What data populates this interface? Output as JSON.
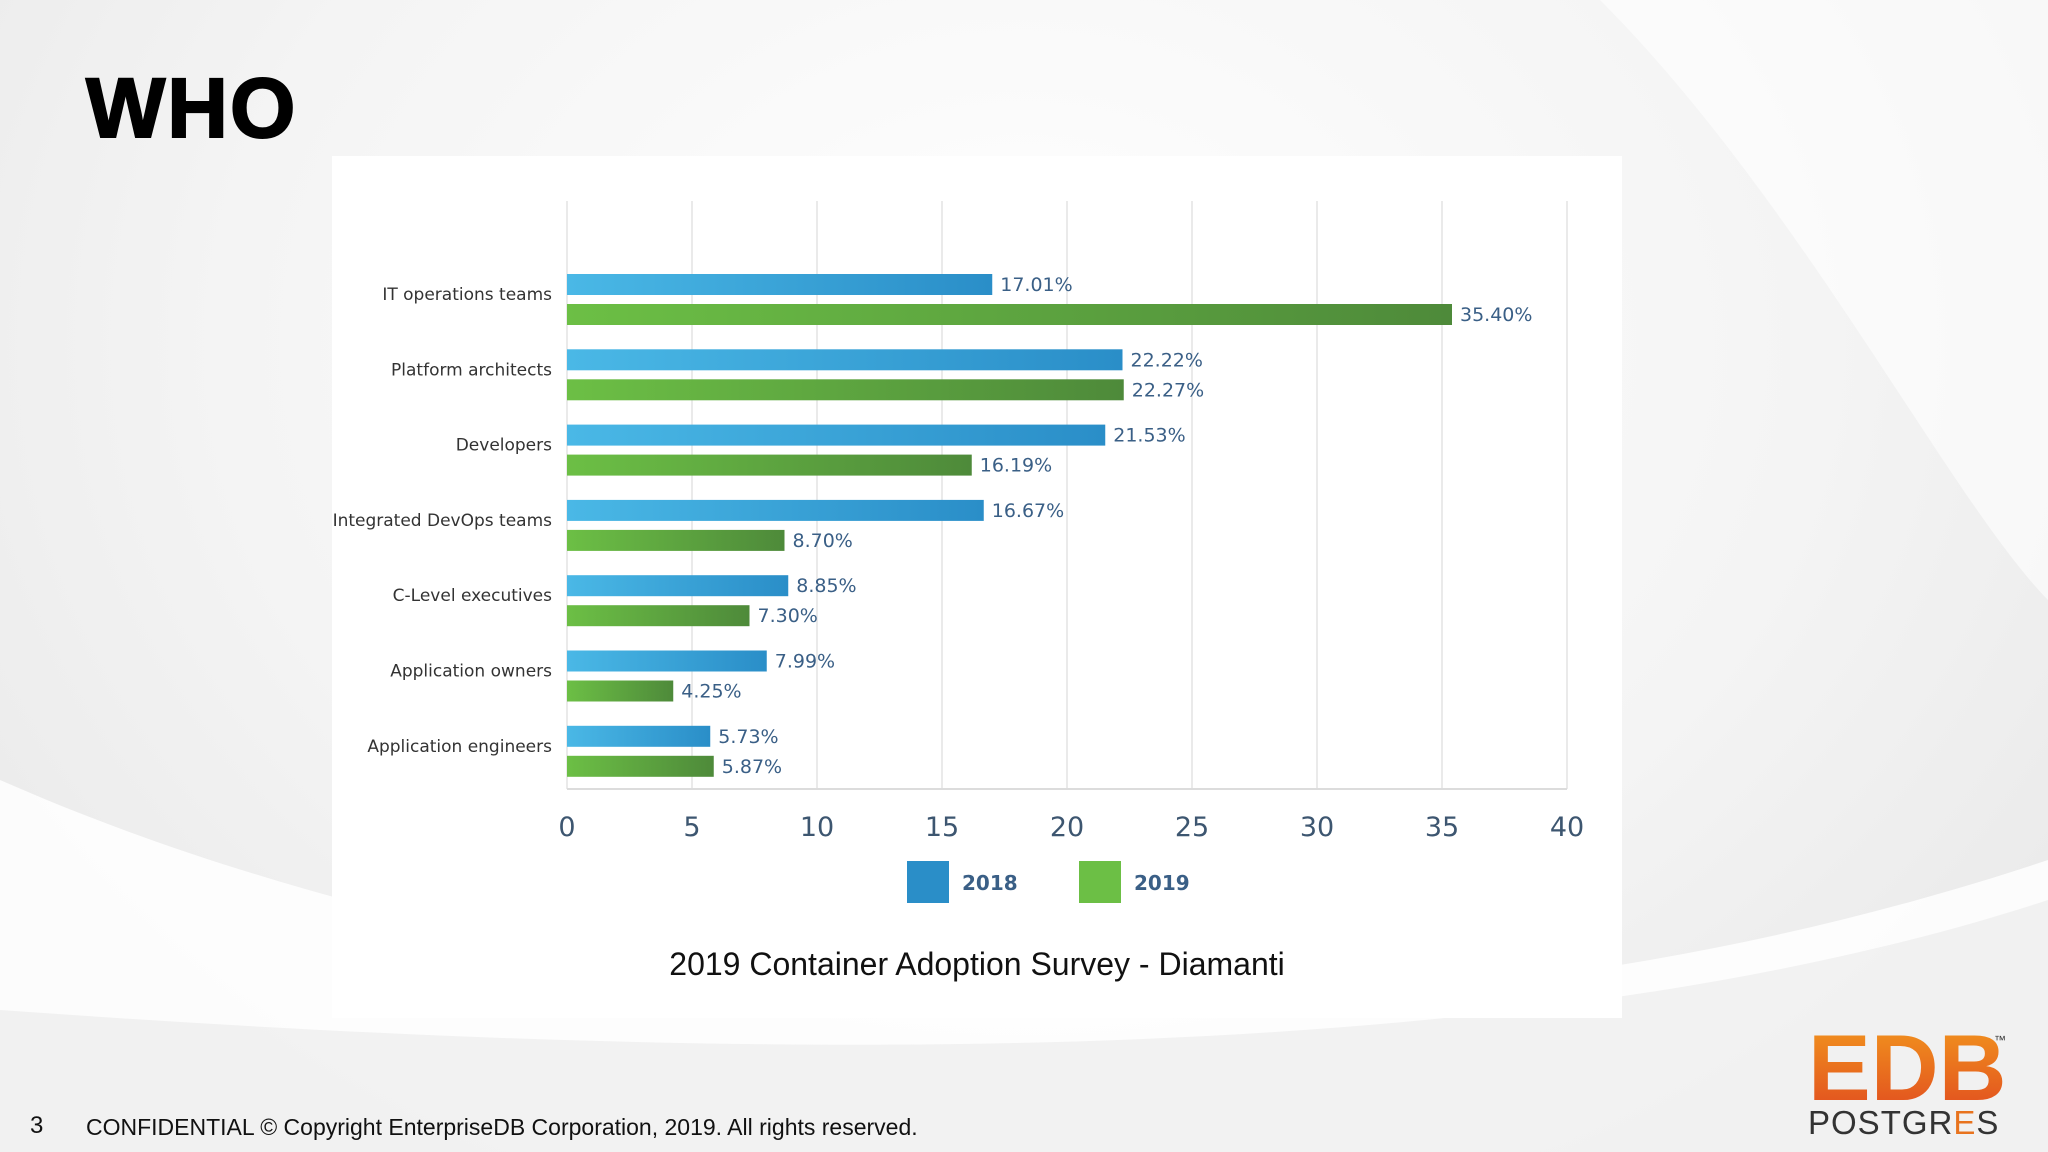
{
  "slide": {
    "title": "WHO",
    "page_number": "3",
    "footer": "CONFIDENTIAL © Copyright EnterpriseDB Corporation, 2019. All rights reserved.",
    "caption": "2019 Container Adoption Survey - Diamanti"
  },
  "logo": {
    "mark": "EDB",
    "trademark": "™",
    "word_prefix": "POSTGR",
    "word_accent": "E",
    "word_suffix": "S"
  },
  "colors": {
    "series_2018": "#2a8ec8",
    "series_2019": "#6cbf45",
    "logo_orange": "#e8731e",
    "logo_dark": "#3a3a3a"
  },
  "chart_data": {
    "type": "bar",
    "orientation": "horizontal",
    "categories": [
      "IT operations teams",
      "Platform architects",
      "Developers",
      "Integrated DevOps teams",
      "C-Level executives",
      "Application owners",
      "Application engineers"
    ],
    "series": [
      {
        "name": "2018",
        "values": [
          17.01,
          22.22,
          21.53,
          16.67,
          8.85,
          7.99,
          5.73
        ],
        "labels": [
          "17.01%",
          "22.22%",
          "21.53%",
          "16.67%",
          "8.85%",
          "7.99%",
          "5.73%"
        ]
      },
      {
        "name": "2019",
        "values": [
          35.4,
          22.27,
          16.19,
          8.7,
          7.3,
          4.25,
          5.87
        ],
        "labels": [
          "35.40%",
          "22.27%",
          "16.19%",
          "8.70%",
          "7.30%",
          "4.25%",
          "5.87%"
        ]
      }
    ],
    "xlim": [
      0,
      40
    ],
    "xticks": [
      "0",
      "5",
      "10",
      "15",
      "20",
      "25",
      "30",
      "35",
      "40"
    ],
    "grid": true,
    "legend": "bottom-center",
    "title": "2019 Container Adoption Survey - Diamanti"
  }
}
